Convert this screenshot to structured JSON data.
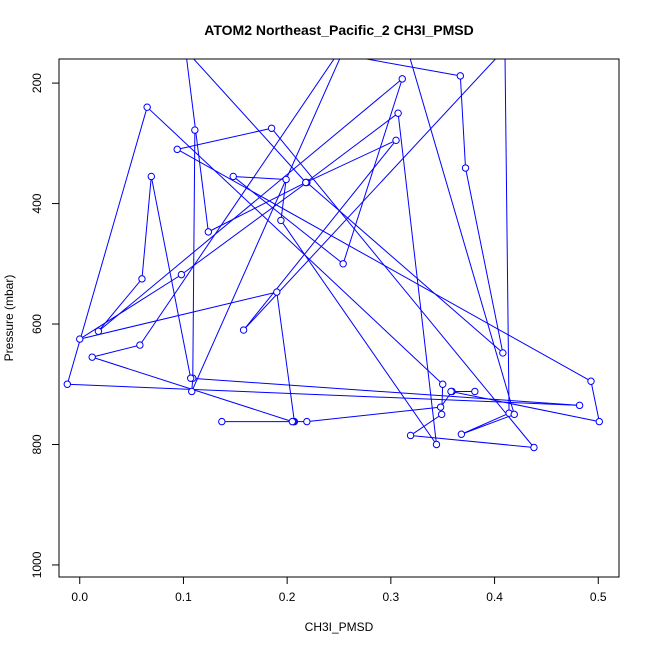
{
  "chart_data": {
    "type": "line",
    "title": "ATOM2 Northeast_Pacific_2 CH3I_PMSD",
    "xlabel": "CH3I_PMSD",
    "ylabel": "Pressure (mbar)",
    "xlim": [
      -0.02,
      0.52
    ],
    "ylim": [
      1020,
      160
    ],
    "y_reversed": true,
    "x_ticks": [
      0.0,
      0.1,
      0.2,
      0.3,
      0.4,
      0.5
    ],
    "x_tick_labels": [
      "0.0",
      "0.1",
      "0.2",
      "0.3",
      "0.4",
      "0.5"
    ],
    "y_ticks": [
      200,
      400,
      600,
      800,
      1000
    ],
    "y_tick_labels": [
      "200",
      "400",
      "600",
      "800",
      "1000"
    ],
    "grid": false,
    "legend": "none",
    "series_color": "#0000ff",
    "marker": "open-circle",
    "series": [
      {
        "x": [
          0.111,
          0.109,
          0.108,
          0.255,
          0.228,
          0.367,
          0.372,
          0.408,
          0.219,
          0.098,
          0.0,
          0.19,
          0.207,
          0.206,
          0.219,
          0.348,
          0.359,
          0.381,
          0.358,
          0.501,
          0.493,
          0.094,
          0.185,
          0.438,
          0.319,
          0.349,
          0.35,
          0.065,
          -0.012,
          0.482,
          0.107,
          0.069,
          0.06,
          0.018,
          0.311,
          0.254,
          0.148,
          0.199,
          0.194,
          0.344,
          0.307,
          0.218,
          0.102,
          0.124,
          0.218,
          0.305,
          0.158,
          0.41,
          0.414,
          0.368,
          0.419,
          0.317,
          0.257,
          0.058,
          0.012,
          0.205,
          0.137
        ],
        "y": [
          278,
          690,
          712,
          143,
          145,
          188,
          341,
          648,
          365,
          518,
          625,
          547,
          762,
          762,
          762,
          738,
          712,
          712,
          712,
          762,
          695,
          310,
          275,
          805,
          785,
          750,
          700,
          240,
          700,
          735,
          690,
          355,
          525,
          612,
          193,
          500,
          355,
          360,
          428,
          800,
          250,
          365,
          145,
          447,
          365,
          295,
          610,
          143,
          748,
          783,
          750,
          150,
          130,
          635,
          655,
          762,
          762
        ]
      }
    ]
  }
}
